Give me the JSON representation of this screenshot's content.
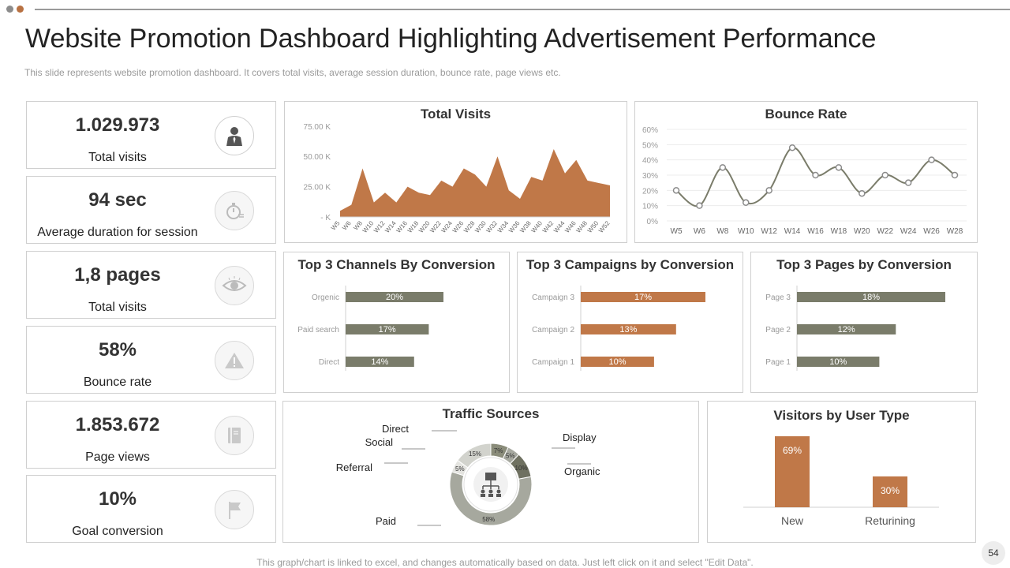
{
  "header": {
    "title": "Website Promotion Dashboard Highlighting Advertisement Performance",
    "subtitle": "This slide represents website promotion dashboard. It covers total visits, average session duration, bounce rate, page views etc.",
    "dot_colors": [
      "#8c8c8c",
      "#b87142"
    ]
  },
  "colors": {
    "brown": "#c07848",
    "olive": "#7a7c6a",
    "grey": "#a7a9a0"
  },
  "kpis": [
    {
      "value": "1.029.973",
      "label": "Total visits",
      "icon": "businessman-icon",
      "active": true
    },
    {
      "value": "94 sec",
      "label": "Average duration for session",
      "icon": "stopwatch-icon",
      "active": false
    },
    {
      "value": "1,8 pages",
      "label": "Total visits",
      "icon": "eye-icon",
      "active": false
    },
    {
      "value": "58%",
      "label": "Bounce rate",
      "icon": "warning-icon",
      "active": false
    },
    {
      "value": "1.853.672",
      "label": "Page views",
      "icon": "book-icon",
      "active": false
    },
    {
      "value": "10%",
      "label": "Goal conversion",
      "icon": "flag-icon",
      "active": false
    }
  ],
  "chart_data": [
    {
      "type": "area",
      "title": "Total Visits",
      "x": [
        "W5",
        "W6",
        "W8",
        "W10",
        "W12",
        "W14",
        "W16",
        "W18",
        "W20",
        "W22",
        "W24",
        "W26",
        "W28",
        "W30",
        "W32",
        "W34",
        "W36",
        "W38",
        "W40",
        "W42",
        "W44",
        "W46",
        "W48",
        "W50",
        "W52"
      ],
      "values": [
        5000,
        10000,
        40000,
        12000,
        20000,
        12000,
        25000,
        20000,
        18000,
        30000,
        25000,
        40000,
        35000,
        25000,
        50000,
        22000,
        15000,
        33000,
        30000,
        56000,
        36000,
        47000,
        30000,
        28000,
        26000
      ],
      "ytick_labels": [
        "75.00 K",
        "50.00 K",
        "25.00 K",
        "- K"
      ],
      "yticks": [
        75000,
        50000,
        25000,
        0
      ],
      "ylim": [
        0,
        82000
      ],
      "color": "#c07848"
    },
    {
      "type": "line",
      "title": "Bounce Rate",
      "x": [
        "W5",
        "W6",
        "W8",
        "W10",
        "W12",
        "W14",
        "W16",
        "W18",
        "W20",
        "W22",
        "W24",
        "W26",
        "W28"
      ],
      "values": [
        20,
        10,
        35,
        12,
        20,
        48,
        30,
        35,
        18,
        30,
        25,
        40,
        30
      ],
      "ytick_labels": [
        "60%",
        "50%",
        "40%",
        "30%",
        "20%",
        "10%",
        "0%"
      ],
      "yticks": [
        60,
        50,
        40,
        30,
        20,
        10,
        0
      ],
      "ylim": [
        0,
        60
      ],
      "grid": true,
      "color": "#7a7c6a"
    },
    {
      "type": "bar",
      "orientation": "horizontal",
      "title": "Top 3 Channels By Conversion",
      "categories": [
        "Orgenic",
        "Paid search",
        "Direct"
      ],
      "values": [
        20,
        17,
        14
      ],
      "labels": [
        "20%",
        "17%",
        "14%"
      ],
      "color": "#7a7c6a"
    },
    {
      "type": "bar",
      "orientation": "horizontal",
      "title": "Top 3 Campaigns by Conversion",
      "categories": [
        "Campaign 3",
        "Campaign 2",
        "Campaign 1"
      ],
      "values": [
        17,
        13,
        10
      ],
      "labels": [
        "17%",
        "13%",
        "10%"
      ],
      "color": "#c07848"
    },
    {
      "type": "bar",
      "orientation": "horizontal",
      "title": "Top 3 Pages by Conversion",
      "categories": [
        "Page 3",
        "Page 2",
        "Page 1"
      ],
      "values": [
        18,
        12,
        10
      ],
      "labels": [
        "18%",
        "12%",
        "10%"
      ],
      "color": "#7a7c6a"
    },
    {
      "type": "pie",
      "title": "Traffic Sources",
      "slices": [
        {
          "name": "Direct",
          "value": 7,
          "label": "7%",
          "color": "#8a8c7a"
        },
        {
          "name": "Display",
          "value": 5,
          "label": "5%",
          "color": "#a7a9a0"
        },
        {
          "name": "Organic",
          "value": 10,
          "label": "10%",
          "color": "#6f7161"
        },
        {
          "name": "Paid",
          "value": 58,
          "label": "58%",
          "color": "#a6a89e"
        },
        {
          "name": "Referral",
          "value": 5,
          "label": "5%",
          "color": "#e4e4e0"
        },
        {
          "name": "Social",
          "value": 15,
          "label": "15%",
          "color": "#d2d3cd"
        }
      ]
    },
    {
      "type": "bar",
      "title": "Visitors by User Type",
      "categories": [
        "New",
        "Returining"
      ],
      "values": [
        69,
        30
      ],
      "labels": [
        "69%",
        "30%"
      ],
      "ylim": [
        0,
        69
      ],
      "color": "#c07848"
    }
  ],
  "footer": {
    "note": "This graph/chart is linked to excel,  and changes automatically based on data. Just left click on it and select \"Edit Data\".",
    "page_number": "54"
  }
}
